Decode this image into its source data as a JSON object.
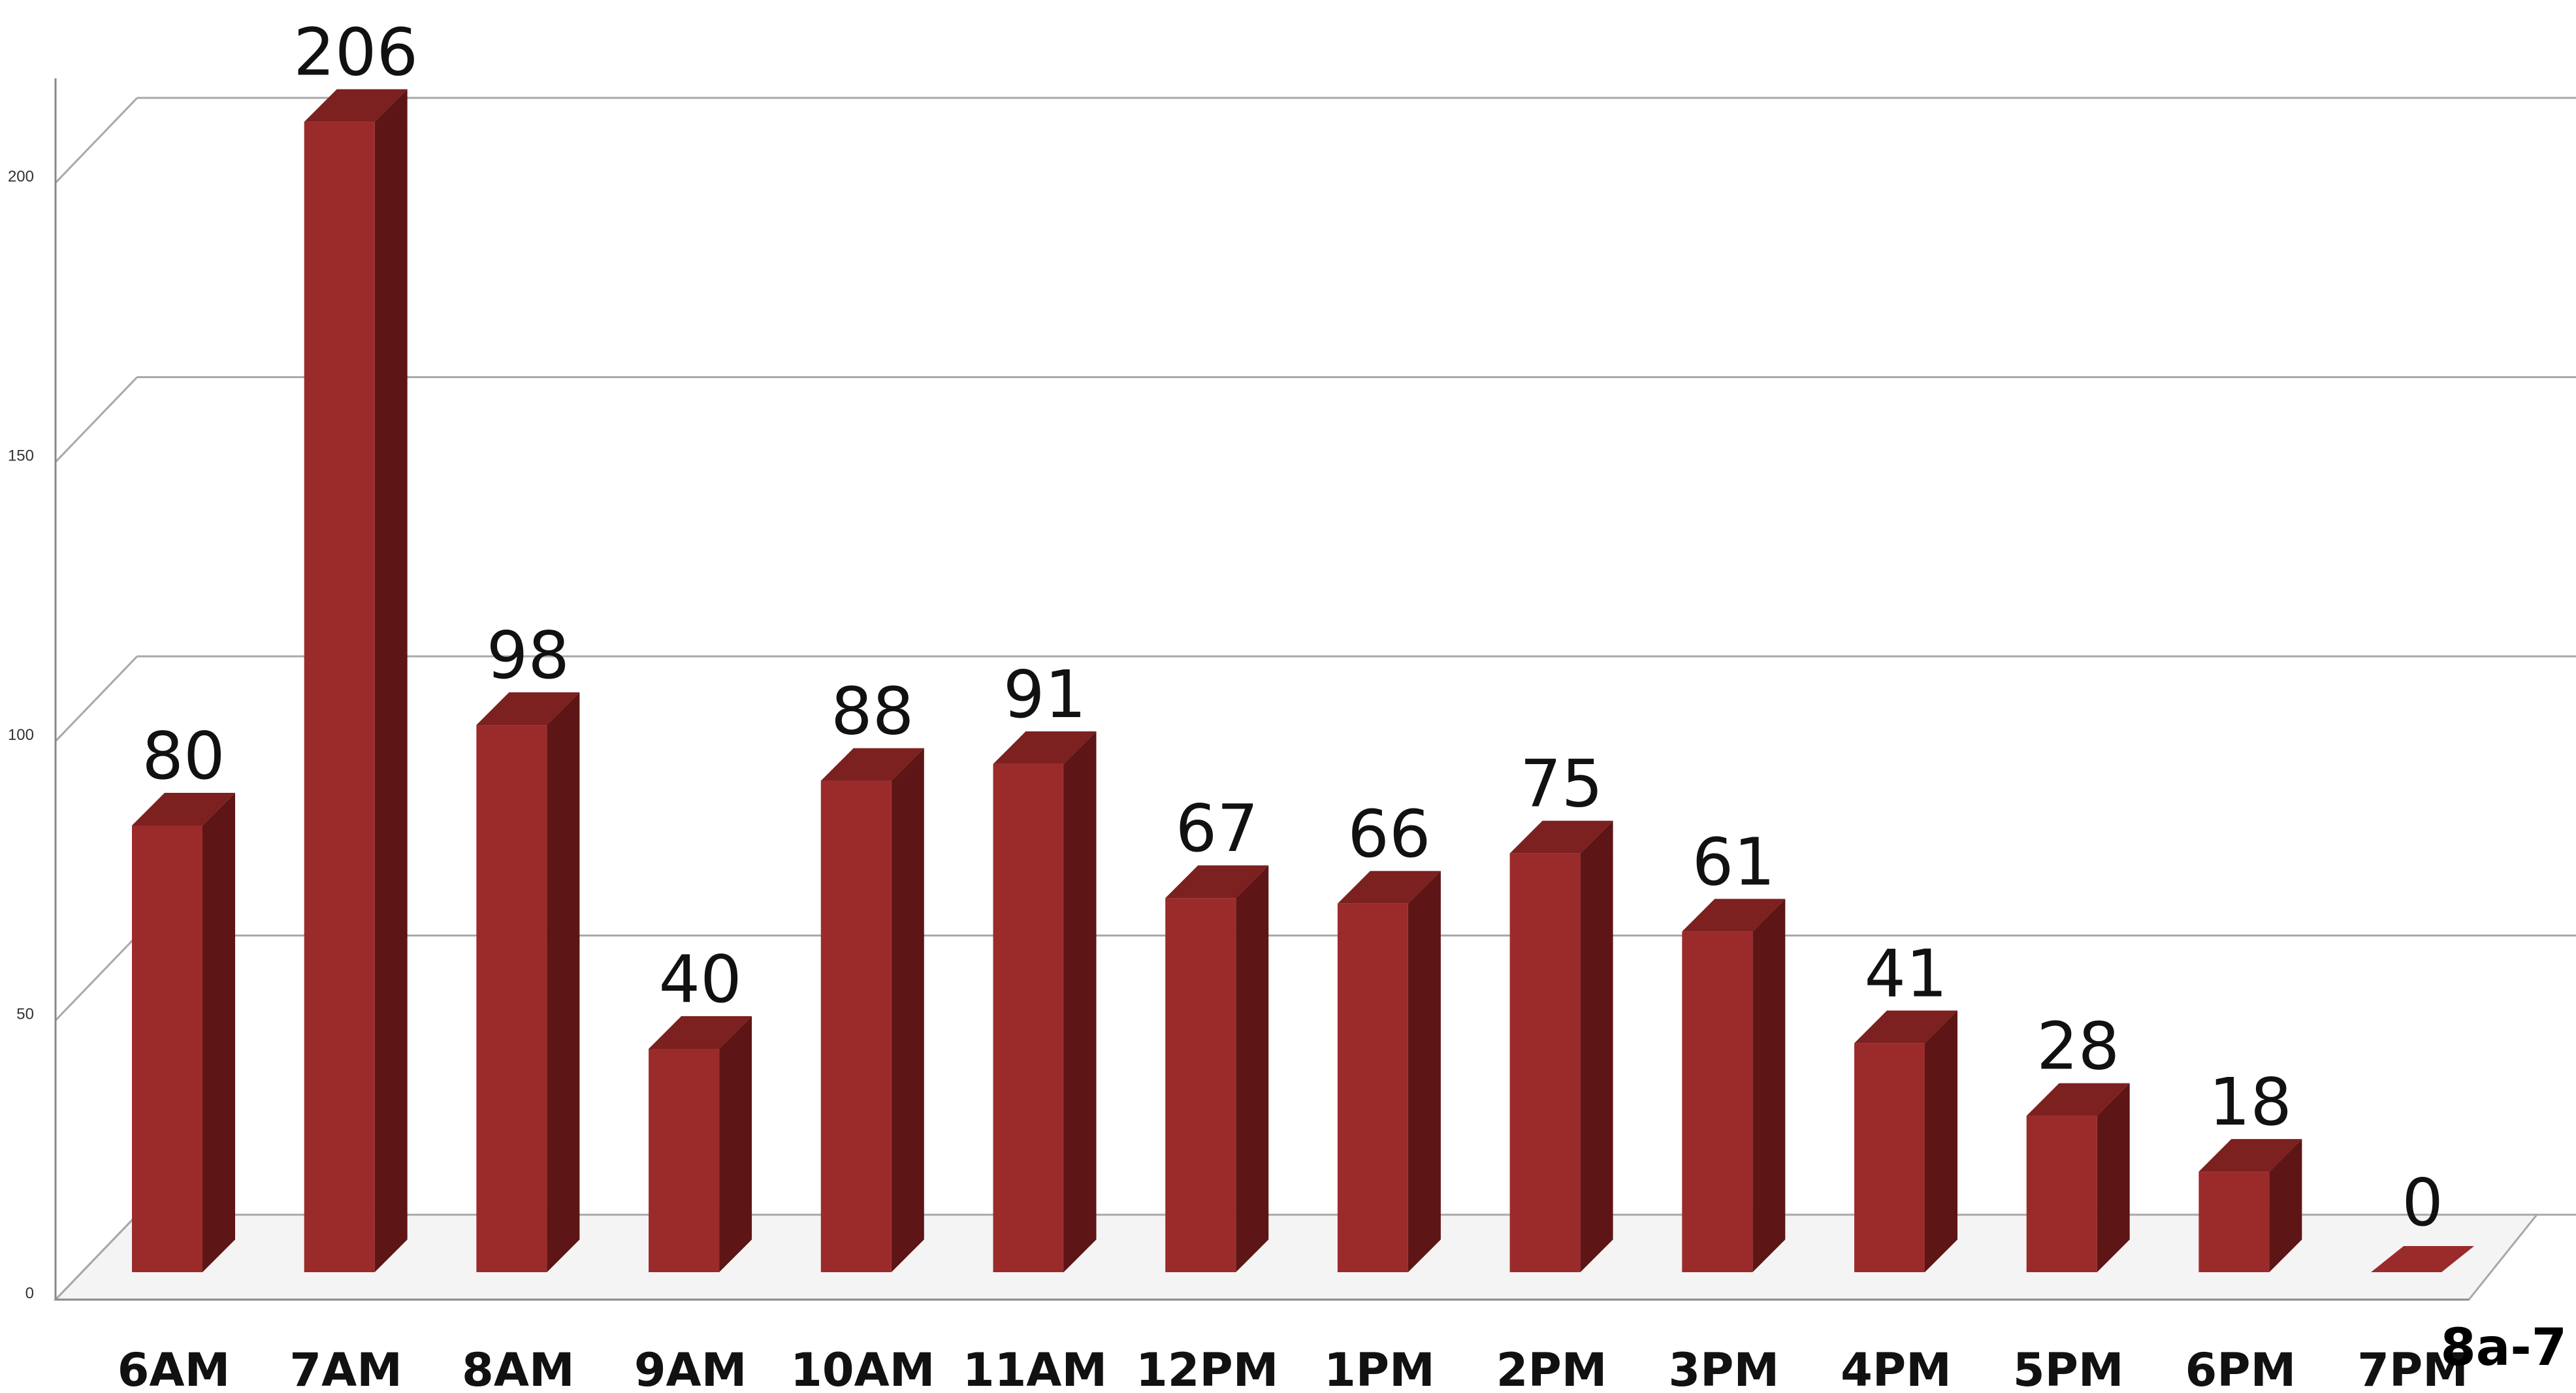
{
  "chart_data": {
    "type": "bar",
    "style": "3d-column",
    "categories": [
      "6AM",
      "7AM",
      "8AM",
      "9AM",
      "10AM",
      "11AM",
      "12PM",
      "1PM",
      "2PM",
      "3PM",
      "4PM",
      "5PM",
      "6PM",
      "7PM"
    ],
    "values": [
      80,
      206,
      98,
      40,
      88,
      91,
      67,
      66,
      75,
      61,
      41,
      28,
      18,
      0
    ],
    "data_labels": [
      "80",
      "206",
      "98",
      "40",
      "88",
      "91",
      "67",
      "66",
      "75",
      "61",
      "41",
      "28",
      "18",
      "0"
    ],
    "y_ticks": [
      "0",
      "50",
      "100",
      "150",
      "200"
    ],
    "ylim": [
      0,
      220
    ],
    "grid": true,
    "xlabel": "",
    "ylabel": "",
    "title": ""
  },
  "corner_label": "8a-7",
  "colors": {
    "bar_front": "#9b2b2b",
    "bar_side": "#5e1515",
    "bar_top": "#7c2020",
    "grid": "#a8a8a8",
    "axis": "#888888"
  }
}
